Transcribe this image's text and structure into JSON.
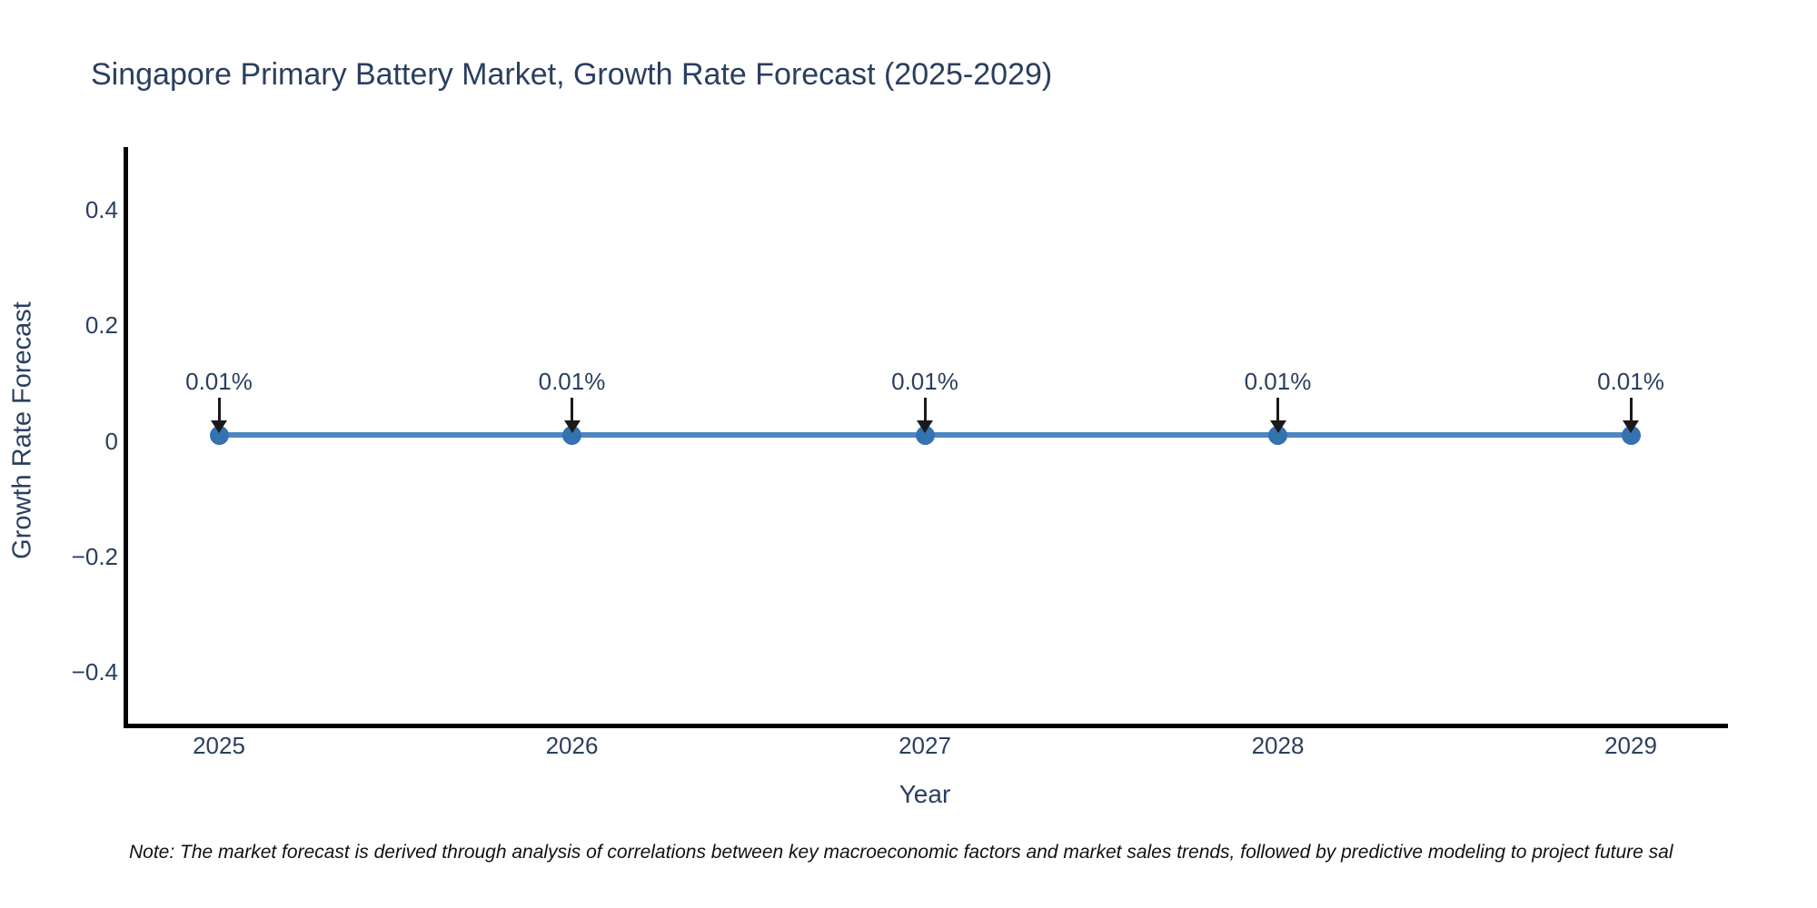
{
  "title": "Singapore Primary Battery Market, Growth Rate Forecast (2025-2029)",
  "note": "Note: The market forecast is derived through analysis of correlations between key macroeconomic factors and market sales trends, followed by predictive modeling to project future sal",
  "colors": {
    "title_text": "#2a3f5f",
    "tick_text": "#2a3f5f",
    "axis_line": "#000000",
    "note_text": "#111111",
    "line": "#4e86c2",
    "marker": "#3572b0",
    "arrow": "#1a1a1a",
    "background": "#ffffff"
  },
  "chart_data": {
    "type": "line",
    "title": "Singapore Primary Battery Market, Growth Rate Forecast (2025-2029)",
    "xlabel": "Year",
    "ylabel": "Growth Rate Forecast",
    "x": [
      2025,
      2026,
      2027,
      2028,
      2029
    ],
    "values": [
      0.01,
      0.01,
      0.01,
      0.01,
      0.01
    ],
    "point_labels": [
      "0.01%",
      "0.01%",
      "0.01%",
      "0.01%",
      "0.01%"
    ],
    "value_unit": "percent",
    "ytick_values": [
      0.4,
      0.2,
      0,
      -0.2,
      -0.4
    ],
    "ytick_labels": [
      "0.4",
      "0.2",
      "0",
      "−0.2",
      "−0.4"
    ],
    "ylim": [
      -0.5,
      0.5
    ],
    "grid": false,
    "legend_position": "none",
    "annotations_have_arrows": true
  }
}
